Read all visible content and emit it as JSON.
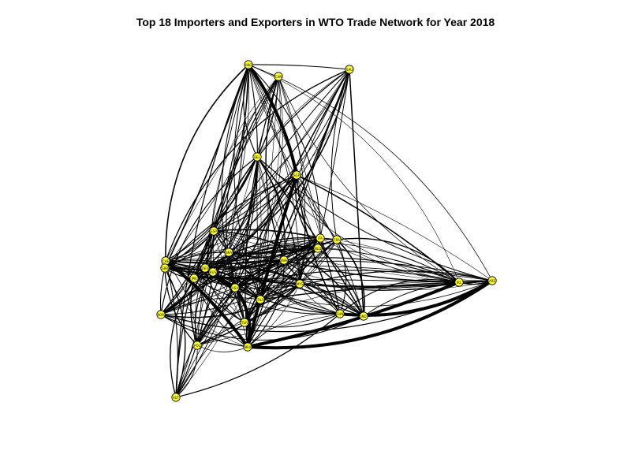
{
  "title": "Top 18 Importers and Exporters in WTO Trade Network for Year 2018",
  "colors": {
    "node_fill": "#ffff33",
    "edge": "#000000",
    "background": "#ffffff"
  },
  "nodes": [
    {
      "id": "HKG",
      "label": "HKG"
    },
    {
      "id": "CAN",
      "label": "CAN"
    },
    {
      "id": "SAU",
      "label": "SAU"
    },
    {
      "id": "BEL",
      "label": "BEL"
    },
    {
      "id": "SGP",
      "label": "SGP"
    },
    {
      "id": "ESP",
      "label": "ESP"
    },
    {
      "id": "ITA",
      "label": "ITA"
    },
    {
      "id": "FRA",
      "label": "FRA"
    },
    {
      "id": "NLD",
      "label": "NLD"
    },
    {
      "id": "CHE",
      "label": "CHE"
    },
    {
      "id": "GBR",
      "label": "GBR"
    },
    {
      "id": "DEU",
      "label": "DEU"
    },
    {
      "id": "RUS",
      "label": "RUS"
    },
    {
      "id": "JPN",
      "label": "JPN"
    },
    {
      "id": "USA",
      "label": "USA"
    },
    {
      "id": "KOR",
      "label": "KOR"
    },
    {
      "id": "CHN",
      "label": "CHN"
    },
    {
      "id": "IND",
      "label": "IND"
    },
    {
      "id": "TUR",
      "label": "TUR"
    },
    {
      "id": "POL",
      "label": "POL"
    },
    {
      "id": "MEX",
      "label": "MEX"
    },
    {
      "id": "ARE",
      "label": "ARE"
    },
    {
      "id": "IRL",
      "label": "IRL"
    },
    {
      "id": "AUT",
      "label": "AUT"
    },
    {
      "id": "SWE",
      "label": "SWE"
    },
    {
      "id": "BRA",
      "label": "BRA"
    },
    {
      "id": "THA",
      "label": "THA"
    },
    {
      "id": "MYS",
      "label": "MYS"
    }
  ]
}
